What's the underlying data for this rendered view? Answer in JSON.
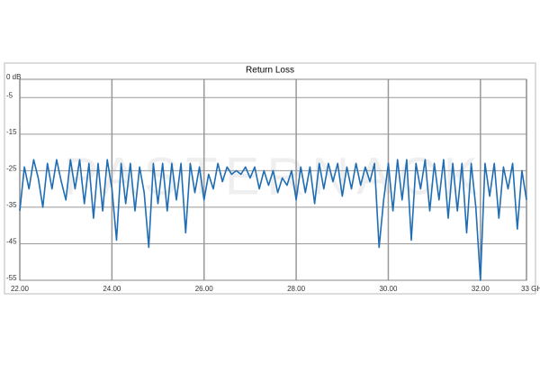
{
  "chart_data": {
    "type": "line",
    "title": "Return Loss",
    "watermark": "PASTERNACK",
    "x": [
      22.0,
      22.1,
      22.2,
      22.3,
      22.4,
      22.5,
      22.6,
      22.7,
      22.8,
      22.9,
      23.0,
      23.1,
      23.2,
      23.3,
      23.4,
      23.5,
      23.6,
      23.7,
      23.8,
      23.9,
      24.0,
      24.1,
      24.2,
      24.3,
      24.4,
      24.5,
      24.6,
      24.7,
      24.8,
      24.9,
      25.0,
      25.1,
      25.2,
      25.3,
      25.4,
      25.5,
      25.6,
      25.7,
      25.8,
      25.9,
      26.0,
      26.1,
      26.2,
      26.3,
      26.4,
      26.5,
      26.6,
      26.7,
      26.8,
      26.9,
      27.0,
      27.1,
      27.2,
      27.3,
      27.4,
      27.5,
      27.6,
      27.7,
      27.8,
      27.9,
      28.0,
      28.1,
      28.2,
      28.3,
      28.4,
      28.5,
      28.6,
      28.7,
      28.8,
      28.9,
      29.0,
      29.1,
      29.2,
      29.3,
      29.4,
      29.5,
      29.6,
      29.7,
      29.8,
      29.9,
      30.0,
      30.1,
      30.2,
      30.3,
      30.4,
      30.5,
      30.6,
      30.7,
      30.8,
      30.9,
      31.0,
      31.1,
      31.2,
      31.3,
      31.4,
      31.5,
      31.6,
      31.7,
      31.8,
      31.9,
      32.0,
      32.1,
      32.2,
      32.3,
      32.4,
      32.5,
      32.6,
      32.7,
      32.8,
      32.9,
      33.0
    ],
    "series": [
      {
        "name": "Return Loss",
        "color": "#1f6db4",
        "values": [
          -36,
          -24,
          -30,
          -22,
          -27,
          -35,
          -23,
          -30,
          -22,
          -28,
          -33,
          -22,
          -30,
          -22,
          -34,
          -23,
          -38,
          -23,
          -36,
          -22,
          -30,
          -44,
          -23,
          -34,
          -23,
          -36,
          -24,
          -31,
          -46,
          -23,
          -34,
          -23,
          -36,
          -23,
          -33,
          -23,
          -42,
          -23,
          -31,
          -24,
          -33,
          -26,
          -30,
          -23,
          -28,
          -24,
          -26,
          -25,
          -26,
          -24,
          -27,
          -24,
          -30,
          -25,
          -29,
          -25,
          -31,
          -27,
          -29,
          -25,
          -33,
          -24,
          -31,
          -24,
          -34,
          -23,
          -30,
          -23,
          -28,
          -23,
          -32,
          -24,
          -30,
          -23,
          -29,
          -24,
          -28,
          -23,
          -46,
          -33,
          -23,
          -36,
          -22,
          -33,
          -22,
          -44,
          -23,
          -30,
          -22,
          -36,
          -23,
          -33,
          -22,
          -38,
          -23,
          -36,
          -23,
          -42,
          -23,
          -35,
          -55,
          -23,
          -32,
          -23,
          -38,
          -24,
          -30,
          -23,
          -41,
          -25,
          -33
        ]
      }
    ],
    "xlim": [
      22,
      33
    ],
    "ylim": [
      -55,
      0
    ],
    "xticks": [
      {
        "value": 22,
        "label": "22.00"
      },
      {
        "value": 24,
        "label": "24.00"
      },
      {
        "value": 26,
        "label": "26.00"
      },
      {
        "value": 28,
        "label": "28.00"
      },
      {
        "value": 30,
        "label": "30.00"
      },
      {
        "value": 32,
        "label": "32.00"
      },
      {
        "value": 33,
        "label": "33 GHz"
      }
    ],
    "yticks": [
      {
        "value": 0,
        "label": "0 dB"
      },
      -5,
      -15,
      -25,
      -35,
      -45,
      -55
    ],
    "grid": true
  }
}
